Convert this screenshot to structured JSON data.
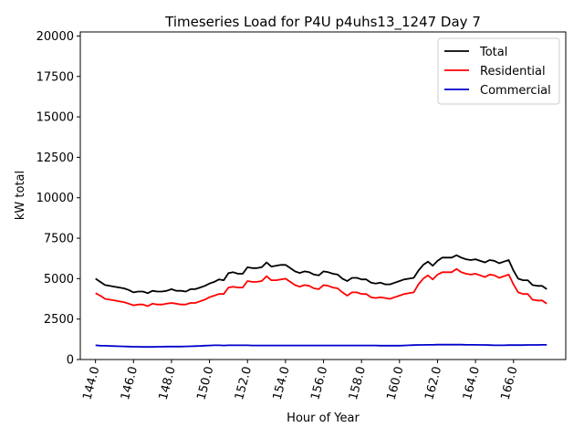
{
  "chart_data": {
    "type": "line",
    "title": "Timeseries Load for P4U p4uhs13_1247  Day 7",
    "xlabel": "Hour of Year",
    "ylabel": "kW total",
    "xlim": [
      143.2,
      168.75
    ],
    "ylim": [
      0,
      20250
    ],
    "xticks": [
      144,
      146,
      148,
      150,
      152,
      154,
      156,
      158,
      160,
      162,
      164,
      166
    ],
    "xtick_labels": [
      "144.0",
      "146.0",
      "148.0",
      "150.0",
      "152.0",
      "154.0",
      "156.0",
      "158.0",
      "160.0",
      "162.0",
      "164.0",
      "166.0"
    ],
    "yticks": [
      0,
      2500,
      5000,
      7500,
      10000,
      12500,
      15000,
      17500,
      20000
    ],
    "ytick_labels": [
      "0",
      "2500",
      "5000",
      "7500",
      "10000",
      "12500",
      "15000",
      "17500",
      "20000"
    ],
    "legend_position": "top-right",
    "x": [
      144.0,
      144.25,
      144.5,
      144.75,
      145.0,
      145.25,
      145.5,
      145.75,
      146.0,
      146.25,
      146.5,
      146.75,
      147.0,
      147.25,
      147.5,
      147.75,
      148.0,
      148.25,
      148.5,
      148.75,
      149.0,
      149.25,
      149.5,
      149.75,
      150.0,
      150.25,
      150.5,
      150.75,
      151.0,
      151.25,
      151.5,
      151.75,
      152.0,
      152.25,
      152.5,
      152.75,
      153.0,
      153.25,
      153.5,
      153.75,
      154.0,
      154.25,
      154.5,
      154.75,
      155.0,
      155.25,
      155.5,
      155.75,
      156.0,
      156.25,
      156.5,
      156.75,
      157.0,
      157.25,
      157.5,
      157.75,
      158.0,
      158.25,
      158.5,
      158.75,
      159.0,
      159.25,
      159.5,
      159.75,
      160.0,
      160.25,
      160.5,
      160.75,
      161.0,
      161.25,
      161.5,
      161.75,
      162.0,
      162.25,
      162.5,
      162.75,
      163.0,
      163.25,
      163.5,
      163.75,
      164.0,
      164.25,
      164.5,
      164.75,
      165.0,
      165.25,
      165.5,
      165.75,
      166.0,
      166.25,
      166.5,
      166.75,
      167.0,
      167.25,
      167.5,
      167.75
    ],
    "series": [
      {
        "name": "Total",
        "color": "#000000",
        "values": [
          5000,
          4800,
          4600,
          4550,
          4500,
          4450,
          4400,
          4300,
          4150,
          4200,
          4200,
          4100,
          4250,
          4200,
          4200,
          4250,
          4350,
          4250,
          4250,
          4200,
          4350,
          4350,
          4450,
          4550,
          4700,
          4800,
          4950,
          4900,
          5350,
          5400,
          5300,
          5300,
          5700,
          5650,
          5650,
          5700,
          6000,
          5750,
          5800,
          5850,
          5850,
          5650,
          5450,
          5350,
          5450,
          5400,
          5250,
          5200,
          5450,
          5400,
          5300,
          5250,
          5000,
          4850,
          5050,
          5050,
          4950,
          4950,
          4750,
          4700,
          4750,
          4650,
          4650,
          4750,
          4850,
          4950,
          5000,
          5050,
          5500,
          5850,
          6050,
          5800,
          6100,
          6300,
          6300,
          6300,
          6450,
          6300,
          6200,
          6150,
          6200,
          6100,
          6000,
          6150,
          6100,
          5950,
          6050,
          6150,
          5500,
          5000,
          4900,
          4900,
          4600,
          4550,
          4550,
          4350
        ]
      },
      {
        "name": "Residential",
        "color": "#ff0000",
        "values": [
          4100,
          3950,
          3750,
          3700,
          3650,
          3600,
          3550,
          3450,
          3350,
          3400,
          3400,
          3300,
          3450,
          3400,
          3400,
          3450,
          3500,
          3450,
          3400,
          3400,
          3500,
          3500,
          3600,
          3700,
          3850,
          3950,
          4050,
          4050,
          4450,
          4500,
          4450,
          4450,
          4850,
          4800,
          4800,
          4850,
          5150,
          4900,
          4900,
          4950,
          5000,
          4800,
          4600,
          4500,
          4600,
          4550,
          4400,
          4350,
          4600,
          4550,
          4450,
          4400,
          4150,
          3950,
          4150,
          4150,
          4050,
          4050,
          3850,
          3800,
          3850,
          3800,
          3750,
          3850,
          3950,
          4050,
          4100,
          4150,
          4650,
          5000,
          5200,
          4950,
          5250,
          5400,
          5400,
          5400,
          5600,
          5400,
          5300,
          5250,
          5300,
          5200,
          5100,
          5250,
          5200,
          5050,
          5150,
          5250,
          4650,
          4150,
          4050,
          4050,
          3700,
          3650,
          3650,
          3450
        ]
      },
      {
        "name": "Commercial",
        "color": "#0000cc",
        "values": [
          880,
          860,
          850,
          840,
          830,
          820,
          810,
          800,
          790,
          790,
          780,
          780,
          780,
          790,
          790,
          800,
          800,
          800,
          800,
          810,
          820,
          830,
          840,
          860,
          870,
          880,
          880,
          870,
          880,
          880,
          880,
          880,
          880,
          870,
          870,
          870,
          870,
          870,
          870,
          870,
          870,
          870,
          870,
          870,
          870,
          870,
          870,
          870,
          870,
          870,
          870,
          870,
          870,
          870,
          870,
          870,
          870,
          870,
          870,
          870,
          860,
          860,
          860,
          860,
          860,
          870,
          880,
          890,
          900,
          900,
          910,
          910,
          920,
          920,
          920,
          920,
          920,
          920,
          910,
          910,
          910,
          900,
          900,
          890,
          880,
          880,
          880,
          890,
          890,
          890,
          890,
          900,
          900,
          900,
          910,
          910
        ]
      }
    ]
  }
}
